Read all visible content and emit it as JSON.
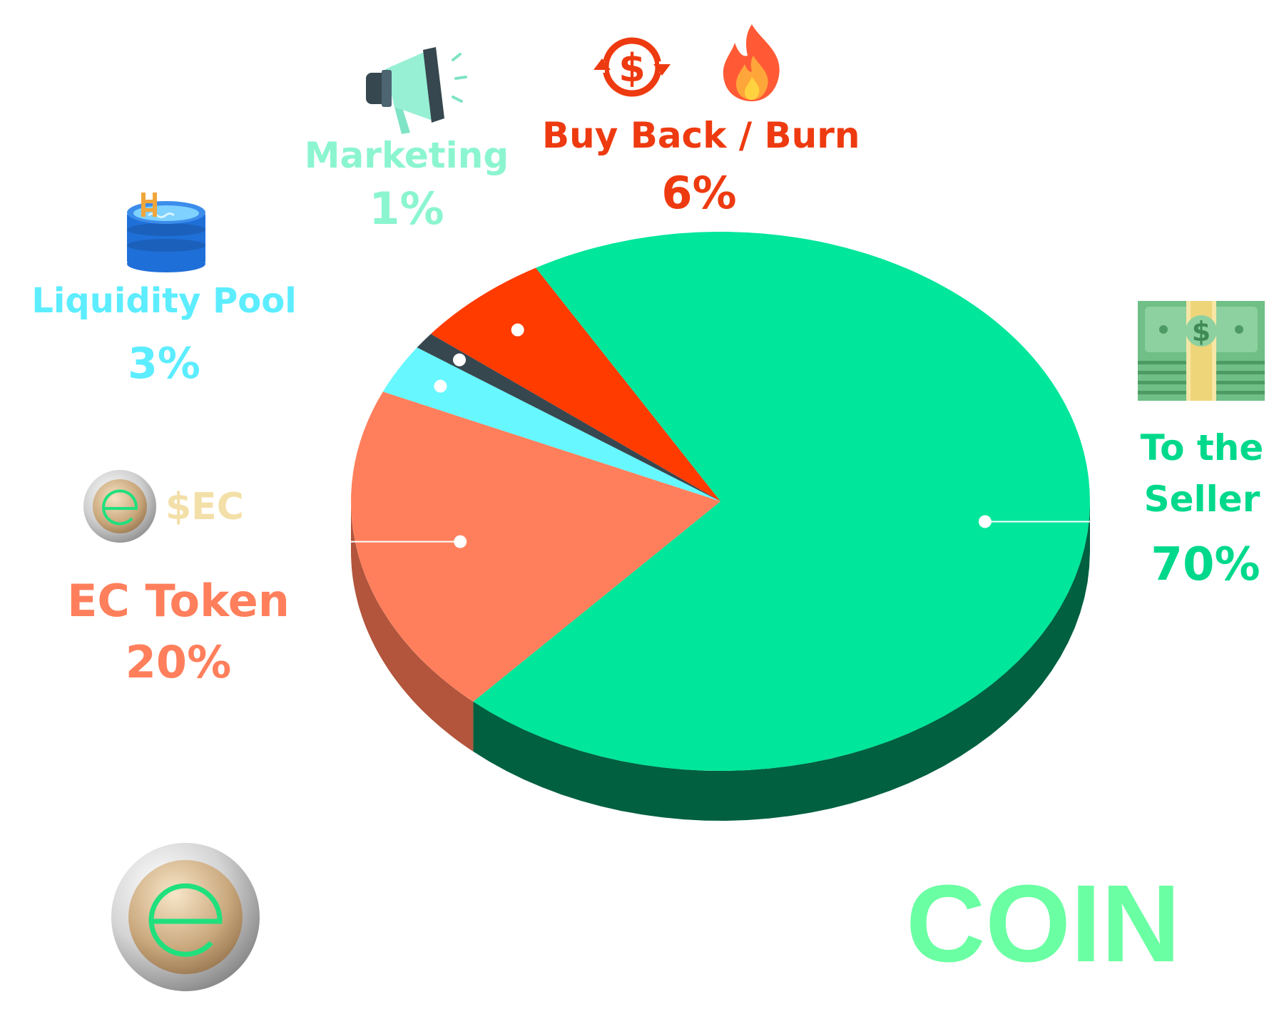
{
  "chart_data": {
    "type": "pie",
    "title": "",
    "slices": [
      {
        "label": "To the Seller",
        "value": 70,
        "display": "70%",
        "color": "#00E69A",
        "side_color": "#00603F"
      },
      {
        "label": "EC Token",
        "value": 20,
        "display": "20%",
        "color": "#FF7F5C",
        "side_color": "#B2553C"
      },
      {
        "label": "Liquidity Pool",
        "value": 3,
        "display": "3%",
        "color": "#67F7FF",
        "side_color": "#3FA5AC"
      },
      {
        "label": "Marketing",
        "value": 1,
        "display": "1%",
        "color": "#37474F",
        "side_color": "#263238"
      },
      {
        "label": "Buy Back / Burn",
        "value": 6,
        "display": "6%",
        "color": "#FF3B00",
        "side_color": "#A62700"
      }
    ]
  },
  "labels": {
    "seller_line1": "To the",
    "seller_line2": "Seller",
    "seller_pct": "70%",
    "ec_token": "EC Token",
    "ec_pct": "20%",
    "ec_ticker": "$EC",
    "liquidity": "Liquidity Pool",
    "liquidity_pct": "3%",
    "marketing": "Marketing",
    "marketing_pct": "1%",
    "buyback": "Buy Back / Burn",
    "buyback_pct": "6%",
    "brand": "COIN"
  },
  "icons": {
    "seller": "money-stack-icon",
    "ec": "ec-coin-icon",
    "liquidity": "pool-icon",
    "marketing": "megaphone-icon",
    "buyback": "dollar-cycle-icon",
    "burn": "fire-icon",
    "logo": "ec-coin-logo-icon"
  },
  "colors": {
    "seller_text": "#00D98C",
    "ec_text": "#FF7F5C",
    "ec_ticker_text": "#F3DFA8",
    "liquidity_text": "#5CEDFF",
    "marketing_text": "#8BF5D0",
    "buyback_text": "#EE3A10",
    "brand_text": "#6BFFA3"
  }
}
